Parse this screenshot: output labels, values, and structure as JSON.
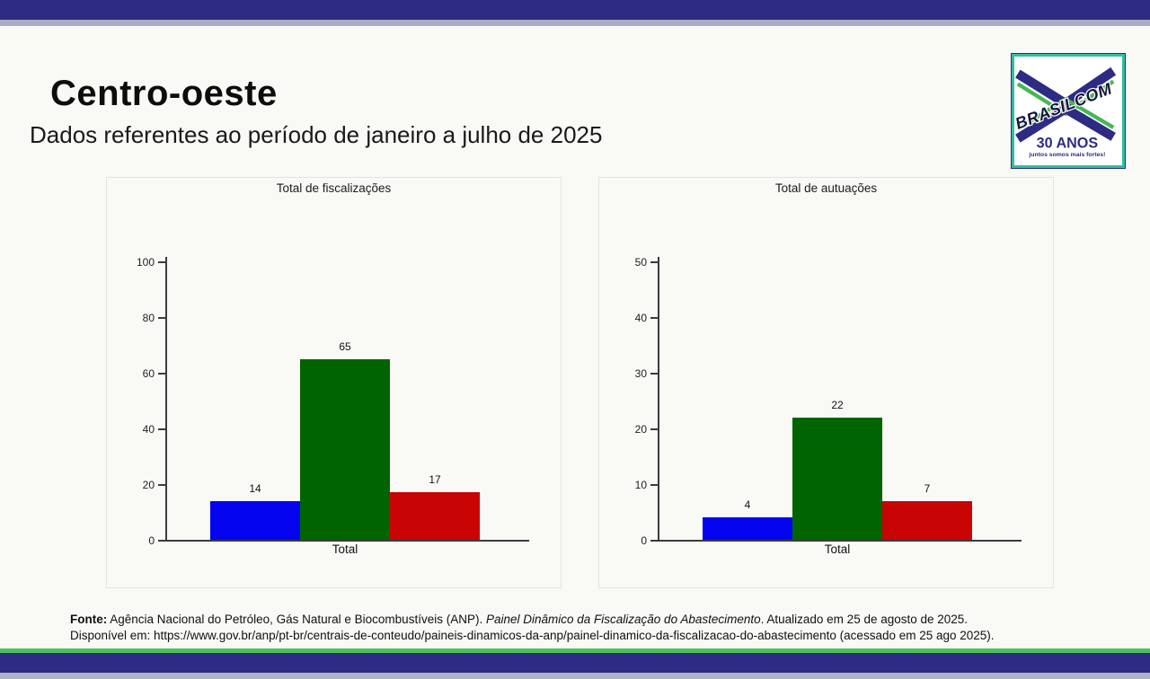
{
  "page": {
    "title": "Centro-oeste",
    "subtitle": "Dados referentes ao período de janeiro a julho de 2025"
  },
  "logo": {
    "brand": "BRASILCOM",
    "anniversary": "30 ANOS",
    "tagline": "juntos somos mais fortes!"
  },
  "theme": {
    "band_navy": "#2e2b85",
    "band_gray": "#a9aec0",
    "band_green": "#4cc35c",
    "logo_teal": "#2fbf9e",
    "axis_color": "#3c3c3c"
  },
  "chart_data": [
    {
      "type": "bar",
      "title": "Total de fiscalizações",
      "categories": [
        "Total"
      ],
      "values": [
        14,
        65,
        17
      ],
      "bar_colors": [
        "#0404f0",
        "#006400",
        "#c80404"
      ],
      "data_labels": [
        14,
        65,
        17
      ],
      "ylim": [
        0,
        100
      ],
      "yticks": [
        0,
        20,
        40,
        60,
        80,
        100
      ],
      "xlabel": "",
      "ylabel": "",
      "grid": false,
      "legend": "none"
    },
    {
      "type": "bar",
      "title": "Total de autuações",
      "categories": [
        "Total"
      ],
      "values": [
        4,
        22,
        7
      ],
      "bar_colors": [
        "#0404f0",
        "#006400",
        "#c80404"
      ],
      "data_labels": [
        4,
        22,
        7
      ],
      "ylim": [
        0,
        50
      ],
      "yticks": [
        0,
        10,
        20,
        30,
        40,
        50
      ],
      "xlabel": "",
      "ylabel": "",
      "grid": false,
      "legend": "none"
    }
  ],
  "footer": {
    "fonte_label": "Fonte:",
    "text_1": " Agência Nacional do Petróleo, Gás Natural e Biocombustíveis (ANP). ",
    "italic_title": "Painel Dinâmico da Fiscalização do Abastecimento",
    "text_2": ". Atualizado em 25 de agosto de 2025.",
    "line2": "Disponível em: https://www.gov.br/anp/pt-br/centrais-de-conteudo/paineis-dinamicos-da-anp/painel-dinamico-da-fiscalizacao-do-abastecimento (acessado em 25 ago 2025)."
  }
}
